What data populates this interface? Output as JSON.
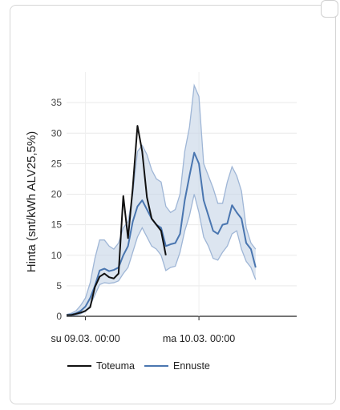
{
  "chart_data": {
    "type": "line",
    "ylabel": "Hinta (snt/kWh ALV25,5%)",
    "ylim": [
      0,
      40
    ],
    "yticks": [
      0,
      5,
      10,
      15,
      20,
      25,
      30,
      35
    ],
    "xticks": [
      {
        "t": 0,
        "label": "su 09.03. 00:00"
      },
      {
        "t": 24,
        "label": "ma 10.03. 00:00"
      }
    ],
    "xlim": [
      -4,
      44
    ],
    "colors": {
      "actual": "#111111",
      "forecast": "#4a76b0",
      "band_fill": "#c5d3e6",
      "band_stroke": "#9fb6d6"
    },
    "series": [
      {
        "name": "Toteuma",
        "key": "actual",
        "x": [
          -4,
          -3,
          -2,
          -1,
          0,
          1,
          2,
          3,
          4,
          5,
          6,
          7,
          8,
          9,
          10,
          11,
          12,
          13,
          14,
          15,
          16,
          17,
          18,
          19,
          20
        ],
        "y": [
          0.2,
          0.2,
          0.4,
          0.6,
          0.9,
          1.5,
          4.8,
          6.5,
          7.0,
          6.4,
          6.2,
          7.0,
          19.7,
          12.8,
          21.0,
          31.2,
          27.0,
          19.5,
          16.0,
          15.0,
          14.0,
          10.0,
          null,
          null,
          null
        ]
      },
      {
        "name": "Ennuste",
        "key": "forecast",
        "x": [
          -4,
          -3,
          -2,
          -1,
          0,
          1,
          2,
          3,
          4,
          5,
          6,
          7,
          8,
          9,
          10,
          11,
          12,
          13,
          14,
          15,
          16,
          17,
          18,
          19,
          20,
          21,
          22,
          23,
          24,
          25,
          26,
          27,
          28,
          29,
          30,
          31,
          32,
          33,
          34,
          35,
          36,
          37,
          38,
          39,
          40,
          41,
          42,
          43,
          44
        ],
        "y": [
          0.2,
          0.3,
          0.5,
          0.9,
          1.6,
          3.0,
          5.0,
          7.5,
          7.8,
          7.4,
          7.6,
          8.0,
          10.0,
          11.5,
          15.5,
          18.0,
          19.0,
          17.5,
          16.0,
          15.0,
          14.5,
          11.5,
          11.8,
          12.0,
          13.5,
          19.0,
          23.0,
          26.8,
          25.0,
          19.0,
          16.5,
          14.0,
          13.5,
          15.0,
          15.2,
          18.2,
          17.0,
          16.0,
          12.0,
          11.0,
          8.0,
          null,
          null,
          null,
          null,
          null,
          null,
          null,
          null
        ]
      }
    ],
    "band": {
      "upper": [
        0.3,
        0.5,
        0.9,
        1.8,
        3.0,
        5.5,
        9.5,
        12.5,
        12.5,
        11.5,
        11.0,
        12.0,
        14.5,
        15.5,
        20.0,
        27.0,
        28.0,
        26.5,
        24.0,
        22.5,
        22.0,
        18.0,
        17.0,
        17.5,
        20.0,
        27.0,
        31.0,
        37.8,
        36.0,
        25.0,
        23.0,
        21.0,
        18.5,
        18.5,
        22.0,
        24.5,
        23.0,
        20.5,
        14.5,
        12.0,
        11.0
      ],
      "lower": [
        0.1,
        0.1,
        0.2,
        0.4,
        0.8,
        1.8,
        3.5,
        5.2,
        5.5,
        5.4,
        5.5,
        5.8,
        7.0,
        8.0,
        10.5,
        13.0,
        14.5,
        13.0,
        11.5,
        11.0,
        10.0,
        7.5,
        8.0,
        8.2,
        10.5,
        14.0,
        16.5,
        20.0,
        17.0,
        13.0,
        11.5,
        9.5,
        9.2,
        10.5,
        11.5,
        13.5,
        14.0,
        11.0,
        9.0,
        8.0,
        6.0
      ]
    },
    "legend": "bottom",
    "grid": "horizontal"
  }
}
